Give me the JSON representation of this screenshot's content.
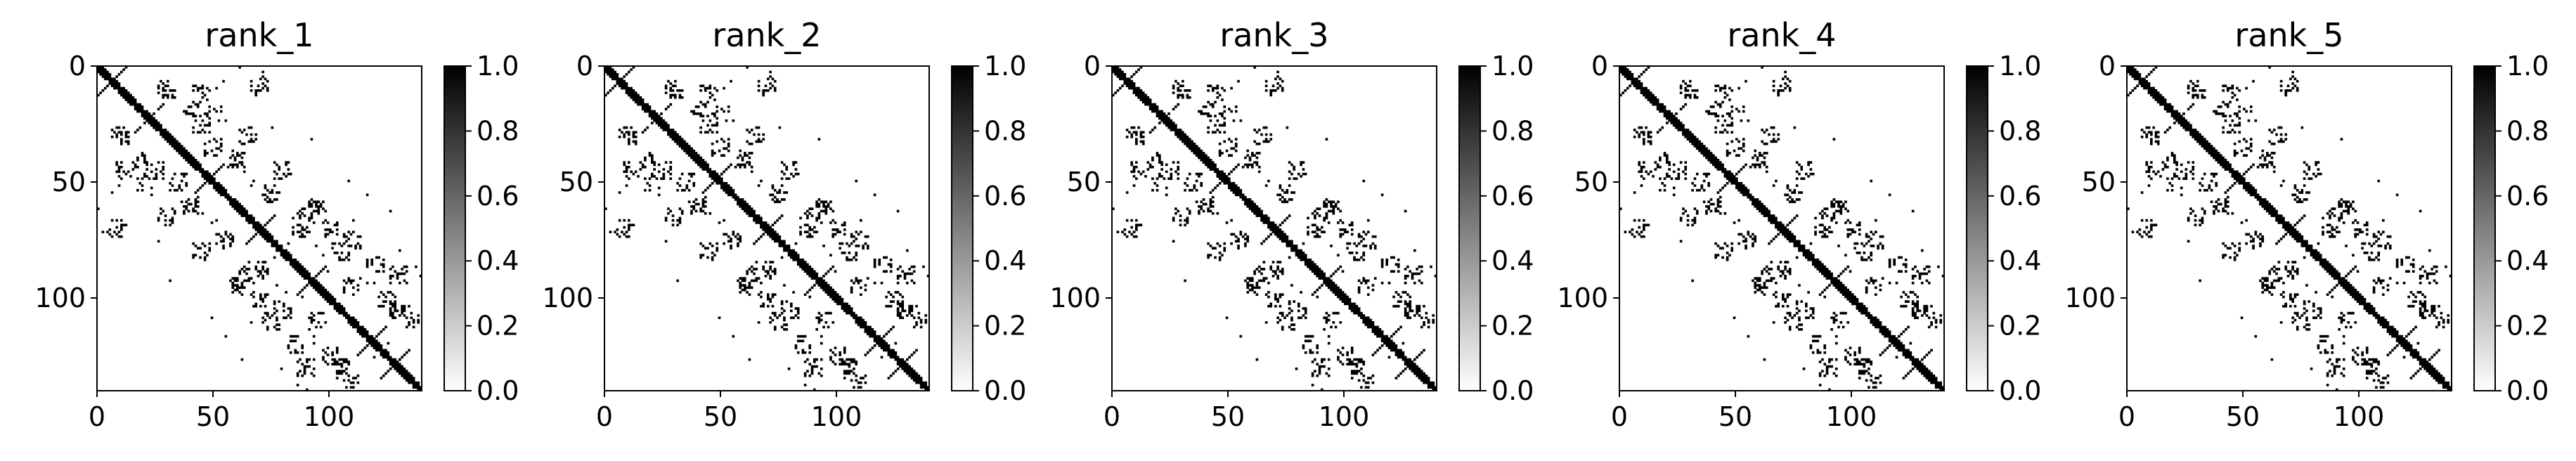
{
  "figure": {
    "background": "#ffffff"
  },
  "chart_data": [
    {
      "type": "heatmap",
      "title": "rank_1",
      "matrix_size": 140,
      "x_ticks": [
        0,
        50,
        100
      ],
      "y_ticks": [
        0,
        50,
        100
      ],
      "colorbar_ticks": [
        "0.0",
        "0.2",
        "0.4",
        "0.6",
        "0.8",
        "1.0"
      ],
      "colorbar_range": [
        0,
        1
      ],
      "colormap": "gray_r",
      "description_values": "binary contact map, dense main diagonal with off-diagonal block patterns",
      "seed": 11
    },
    {
      "type": "heatmap",
      "title": "rank_2",
      "matrix_size": 140,
      "x_ticks": [
        0,
        50,
        100
      ],
      "y_ticks": [
        0,
        50,
        100
      ],
      "colorbar_ticks": [
        "0.0",
        "0.2",
        "0.4",
        "0.6",
        "0.8",
        "1.0"
      ],
      "colorbar_range": [
        0,
        1
      ],
      "colormap": "gray_r",
      "seed": 11
    },
    {
      "type": "heatmap",
      "title": "rank_3",
      "matrix_size": 140,
      "x_ticks": [
        0,
        50,
        100
      ],
      "y_ticks": [
        0,
        50,
        100
      ],
      "colorbar_ticks": [
        "0.0",
        "0.2",
        "0.4",
        "0.6",
        "0.8",
        "1.0"
      ],
      "colorbar_range": [
        0,
        1
      ],
      "colormap": "gray_r",
      "seed": 11
    },
    {
      "type": "heatmap",
      "title": "rank_4",
      "matrix_size": 140,
      "x_ticks": [
        0,
        50,
        100
      ],
      "y_ticks": [
        0,
        50,
        100
      ],
      "colorbar_ticks": [
        "0.0",
        "0.2",
        "0.4",
        "0.6",
        "0.8",
        "1.0"
      ],
      "colorbar_range": [
        0,
        1
      ],
      "colormap": "gray_r",
      "seed": 11
    },
    {
      "type": "heatmap",
      "title": "rank_5",
      "matrix_size": 140,
      "x_ticks": [
        0,
        50,
        100
      ],
      "y_ticks": [
        0,
        50,
        100
      ],
      "colorbar_ticks": [
        "0.0",
        "0.2",
        "0.4",
        "0.6",
        "0.8",
        "1.0"
      ],
      "colorbar_range": [
        0,
        1
      ],
      "colormap": "gray_r",
      "seed": 11
    }
  ]
}
